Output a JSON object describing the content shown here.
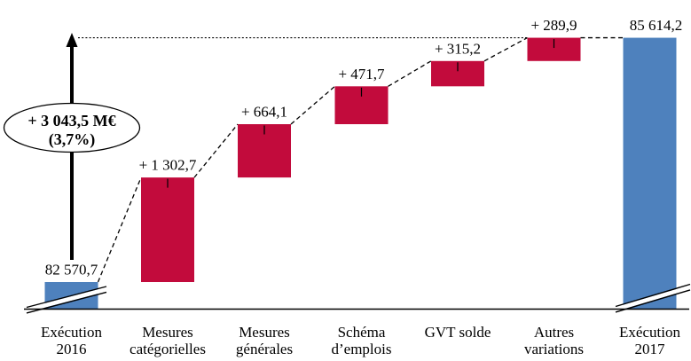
{
  "chart_data": {
    "type": "bar",
    "subtype": "waterfall",
    "title": "",
    "unit": "M€",
    "colors": {
      "total_bar": "#4E81BD",
      "delta_bar": "#C20B3C",
      "line": "#000000",
      "background": "#FFFFFF"
    },
    "layout_hints": {
      "grid": false,
      "legend": false,
      "y_axis_hidden": true,
      "axis_break_on_total_bars": true,
      "connector_style": "dashed",
      "total_reference_line_style": "dotted"
    },
    "bars": [
      {
        "kind": "total",
        "value": 82570.7,
        "value_label": "82 570,7",
        "category_lines": [
          "Exécution",
          "2016"
        ],
        "axis_break": true
      },
      {
        "kind": "delta",
        "value": 1302.7,
        "value_label": "+ 1 302,7",
        "category_lines": [
          "Mesures",
          "catégorielles"
        ],
        "axis_break": false
      },
      {
        "kind": "delta",
        "value": 664.1,
        "value_label": "+ 664,1",
        "category_lines": [
          "Mesures",
          "générales"
        ],
        "axis_break": false
      },
      {
        "kind": "delta",
        "value": 471.7,
        "value_label": "+ 471,7",
        "category_lines": [
          "Schéma",
          "d’emplois"
        ],
        "axis_break": false
      },
      {
        "kind": "delta",
        "value": 315.2,
        "value_label": "+ 315,2",
        "category_lines": [
          "GVT solde"
        ],
        "axis_break": false
      },
      {
        "kind": "delta",
        "value": 289.9,
        "value_label": "+ 289,9",
        "category_lines": [
          "Autres",
          "variations"
        ],
        "axis_break": false
      },
      {
        "kind": "total",
        "value": 85614.2,
        "value_label": "85 614,2",
        "category_lines": [
          "Exécution",
          "2017"
        ],
        "axis_break": true
      }
    ],
    "total_annotation": {
      "line1": "+ 3 043,5 M€",
      "line2": "(3,7%)"
    }
  }
}
